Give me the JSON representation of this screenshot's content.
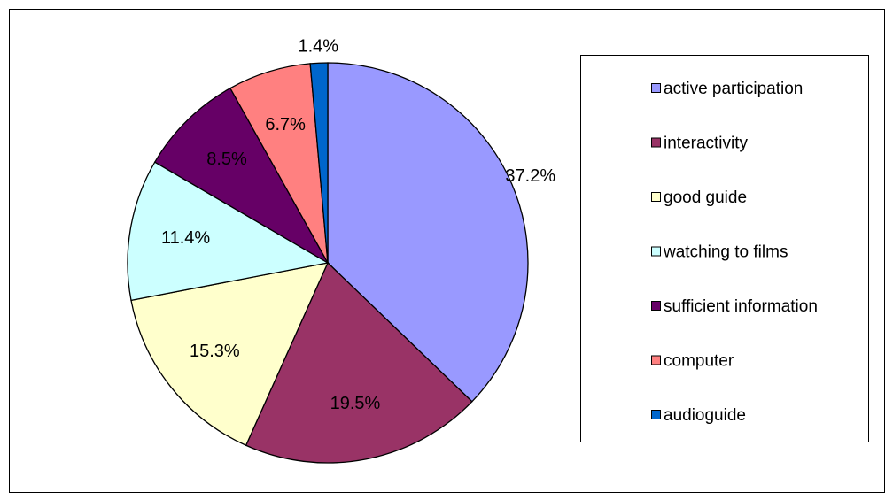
{
  "chart_data": {
    "type": "pie",
    "categories": [
      "active participation",
      "interactivity",
      "good guide",
      "watching to films",
      "sufficient information",
      "computer",
      "audioguide"
    ],
    "values": [
      37.2,
      19.5,
      15.3,
      11.4,
      8.5,
      6.7,
      1.4
    ],
    "value_labels": [
      "37.2%",
      "19.5%",
      "15.3%",
      "11.4%",
      "8.5%",
      "6.7%",
      "1.4%"
    ],
    "colors": [
      "#9999ff",
      "#993366",
      "#ffffcc",
      "#ccffff",
      "#660066",
      "#ff8080",
      "#0066cc"
    ],
    "legend": "right"
  }
}
